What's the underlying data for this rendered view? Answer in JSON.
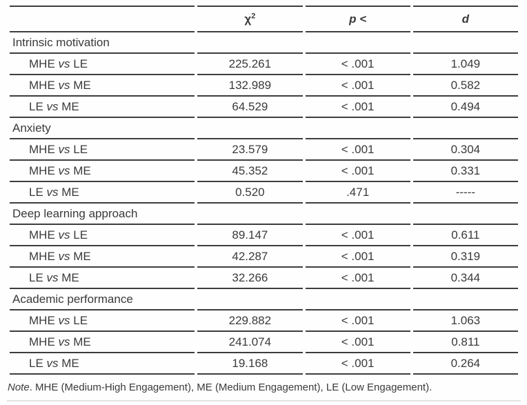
{
  "colors": {
    "text": "#3a3a3a",
    "rule": "#3d3d3d",
    "footer_rule": "#e2e2e2"
  },
  "table": {
    "header": {
      "chi": "χ",
      "chi_sup": "2",
      "p": "p <",
      "d": "d"
    },
    "sections": [
      {
        "label": "Intrinsic motivation",
        "rows": [
          {
            "g1": "MHE",
            "vs": "vs",
            "g2": "LE",
            "chi2": "225.261",
            "p": "< .001",
            "d": "1.049"
          },
          {
            "g1": "MHE",
            "vs": "vs",
            "g2": "ME",
            "chi2": "132.989",
            "p": "< .001",
            "d": "0.582"
          },
          {
            "g1": "LE",
            "vs": "vs",
            "g2": "ME",
            "chi2": "64.529",
            "p": "< .001",
            "d": "0.494"
          }
        ]
      },
      {
        "label": "Anxiety",
        "rows": [
          {
            "g1": "MHE",
            "vs": "vs",
            "g2": "LE",
            "chi2": "23.579",
            "p": "< .001",
            "d": "0.304"
          },
          {
            "g1": "MHE",
            "vs": "vs",
            "g2": "ME",
            "chi2": "45.352",
            "p": "< .001",
            "d": "0.331"
          },
          {
            "g1": "LE",
            "vs": "vs",
            "g2": "ME",
            "chi2": "0.520",
            "p": ".471",
            "d": "-----"
          }
        ]
      },
      {
        "label": "Deep learning approach",
        "rows": [
          {
            "g1": "MHE",
            "vs": "vs",
            "g2": "LE",
            "chi2": "89.147",
            "p": "< .001",
            "d": "0.611"
          },
          {
            "g1": "MHE",
            "vs": "vs",
            "g2": "ME",
            "chi2": "42.287",
            "p": "< .001",
            "d": "0.319"
          },
          {
            "g1": "LE",
            "vs": "vs",
            "g2": "ME",
            "chi2": "32.266",
            "p": "< .001",
            "d": "0.344"
          }
        ]
      },
      {
        "label": "Academic performance",
        "rows": [
          {
            "g1": "MHE",
            "vs": "vs",
            "g2": "LE",
            "chi2": "229.882",
            "p": "< .001",
            "d": "1.063"
          },
          {
            "g1": "MHE",
            "vs": "vs",
            "g2": "ME",
            "chi2": "241.074",
            "p": "< .001",
            "d": "0.811"
          },
          {
            "g1": "LE",
            "vs": "vs",
            "g2": "ME",
            "chi2": "19.168",
            "p": "< .001",
            "d": "0.264"
          }
        ]
      }
    ],
    "note_prefix": "Note",
    "note_rest": ". MHE (Medium-High Engagement), ME (Medium Engagement), LE (Low Engagement)."
  }
}
